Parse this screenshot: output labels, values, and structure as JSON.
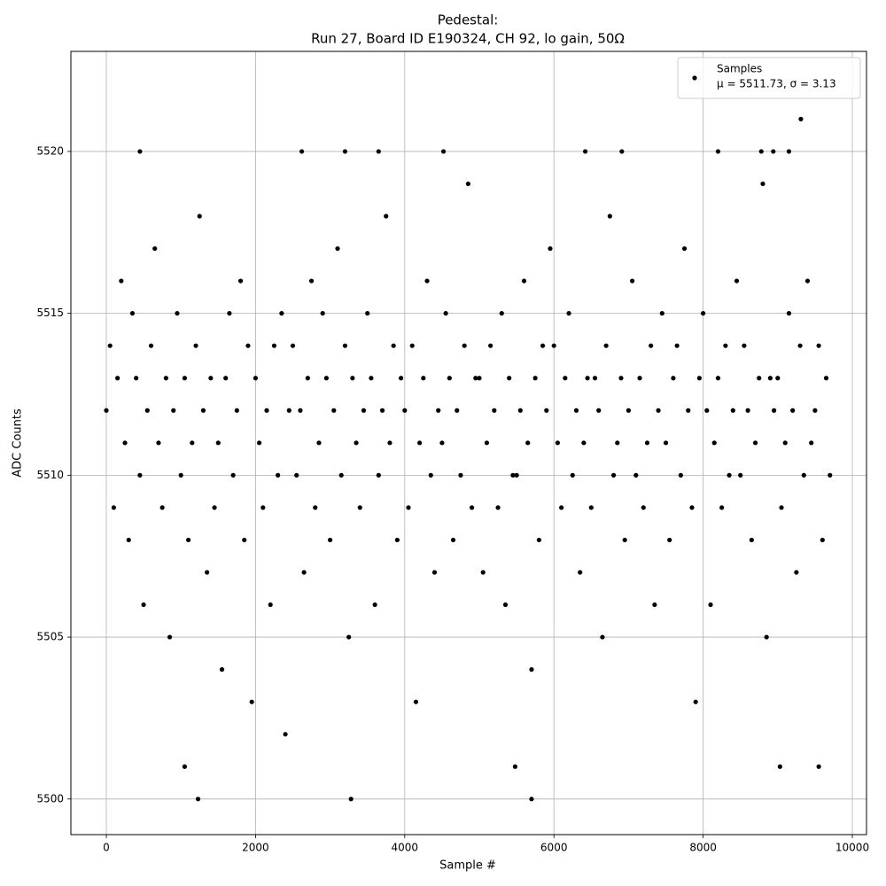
{
  "chart_data": {
    "type": "scatter",
    "title": "Pedestal:",
    "subtitle": "Run 27, Board ID E190324, CH 92, lo gain, 50Ω",
    "x_label": "Sample #",
    "y_label": "ADC Counts",
    "legend_annotation": "μ = 5511.73, σ = 3.13",
    "legend_loc": "upper right",
    "grid": true,
    "xlim": [
      -475,
      10190
    ],
    "ylim": [
      5498.9,
      5523.09
    ],
    "xticks": [
      0,
      2000,
      4000,
      6000,
      8000,
      10000
    ],
    "yticks": [
      5500,
      5505,
      5510,
      5515,
      5520
    ],
    "x": [
      0,
      50,
      100,
      150,
      200,
      250,
      300,
      350,
      400,
      450,
      500,
      550,
      600,
      650,
      700,
      750,
      800,
      850,
      900,
      950,
      1000,
      1050,
      1100,
      1150,
      1200,
      1250,
      1300,
      1350,
      1400,
      1450,
      1500,
      1550,
      1600,
      1650,
      1700,
      1750,
      1800,
      1850,
      1900,
      1950,
      2000,
      2050,
      2100,
      2150,
      2200,
      2250,
      2300,
      2350,
      2400,
      2450,
      2500,
      2550,
      2600,
      2650,
      2700,
      2750,
      2800,
      2850,
      2900,
      2950,
      3000,
      3050,
      3100,
      3150,
      3200,
      3250,
      3300,
      3350,
      3400,
      3450,
      3500,
      3550,
      3600,
      3650,
      3700,
      3750,
      3800,
      3850,
      3900,
      3950,
      4000,
      4050,
      4100,
      4150,
      4200,
      4250,
      4300,
      4350,
      4400,
      4450,
      4500,
      4550,
      4600,
      4650,
      4700,
      4750,
      4800,
      4850,
      4900,
      4950,
      5000,
      5050,
      5100,
      5150,
      5200,
      5250,
      5300,
      5350,
      5400,
      5450,
      5500,
      5550,
      5600,
      5650,
      5700,
      5750,
      5800,
      5850,
      5900,
      5950,
      6000,
      6050,
      6100,
      6150,
      6200,
      6250,
      6300,
      6350,
      6400,
      6450,
      6500,
      6550,
      6600,
      6650,
      6700,
      6750,
      6800,
      6850,
      6900,
      6950,
      7000,
      7050,
      7100,
      7150,
      7200,
      7250,
      7300,
      7350,
      7400,
      7450,
      7500,
      7550,
      7600,
      7650,
      7700,
      7750,
      7800,
      7850,
      7900,
      7950,
      8000,
      8050,
      8100,
      8150,
      8200,
      8250,
      8300,
      8350,
      8400,
      8450,
      8500,
      8550,
      8600,
      8650,
      8700,
      8750,
      8800,
      8850,
      8900,
      8950,
      9000,
      9050,
      9100,
      9150,
      9200,
      9250,
      9300,
      9350,
      9400,
      9450,
      9500,
      9550,
      9600,
      9650,
      9700,
      1230,
      3280,
      5700,
      9310,
      450,
      2620,
      3200,
      3650,
      4520,
      6420,
      6910,
      8200,
      8780,
      8940,
      9150,
      1050,
      5480,
      9030,
      9550
    ],
    "series": [
      {
        "name": "Samples",
        "color": "#000000",
        "values": [
          5512,
          5514,
          5509,
          5513,
          5516,
          5511,
          5508,
          5515,
          5513,
          5510,
          5506,
          5512,
          5514,
          5517,
          5511,
          5509,
          5513,
          5505,
          5512,
          5515,
          5510,
          5513,
          5508,
          5511,
          5514,
          5518,
          5512,
          5507,
          5513,
          5509,
          5511,
          5504,
          5513,
          5515,
          5510,
          5512,
          5516,
          5508,
          5514,
          5503,
          5513,
          5511,
          5509,
          5512,
          5506,
          5514,
          5510,
          5515,
          5502,
          5512,
          5514,
          5510,
          5512,
          5507,
          5513,
          5516,
          5509,
          5511,
          5515,
          5513,
          5508,
          5512,
          5517,
          5510,
          5514,
          5505,
          5513,
          5511,
          5509,
          5512,
          5515,
          5513,
          5506,
          5510,
          5512,
          5518,
          5511,
          5514,
          5508,
          5513,
          5512,
          5509,
          5514,
          5503,
          5511,
          5513,
          5516,
          5510,
          5507,
          5512,
          5511,
          5515,
          5513,
          5508,
          5512,
          5510,
          5514,
          5519,
          5509,
          5513,
          5513,
          5507,
          5511,
          5514,
          5512,
          5509,
          5515,
          5506,
          5513,
          5510,
          5510,
          5512,
          5516,
          5511,
          5504,
          5513,
          5508,
          5514,
          5512,
          5517,
          5514,
          5511,
          5509,
          5513,
          5515,
          5510,
          5512,
          5507,
          5511,
          5513,
          5509,
          5513,
          5512,
          5505,
          5514,
          5518,
          5510,
          5511,
          5513,
          5508,
          5512,
          5516,
          5510,
          5513,
          5509,
          5511,
          5514,
          5506,
          5512,
          5515,
          5511,
          5508,
          5513,
          5514,
          5510,
          5517,
          5512,
          5509,
          5503,
          5513,
          5515,
          5512,
          5506,
          5511,
          5513,
          5509,
          5514,
          5510,
          5512,
          5516,
          5510,
          5514,
          5512,
          5508,
          5511,
          5513,
          5519,
          5505,
          5513,
          5512,
          5513,
          5509,
          5511,
          5515,
          5512,
          5507,
          5514,
          5510,
          5516,
          5511,
          5512,
          5514,
          5508,
          5513,
          5510,
          5500,
          5500,
          5500,
          5521,
          5520,
          5520,
          5520,
          5520,
          5520,
          5520,
          5520,
          5520,
          5520,
          5520,
          5520,
          5501,
          5501,
          5501,
          5501
        ]
      }
    ]
  }
}
